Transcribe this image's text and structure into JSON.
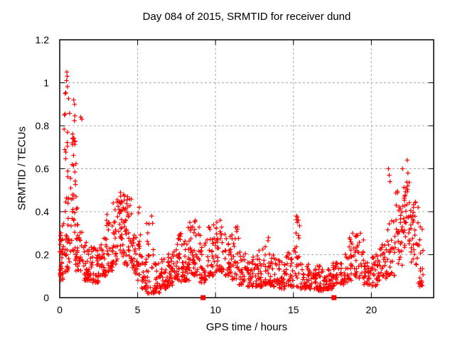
{
  "chart_data": {
    "type": "scatter",
    "title": "Day 084 of 2015, SRMTID for receiver dund",
    "xlabel": "GPS time / hours",
    "ylabel": "SRMTID / TECUs",
    "xlim": [
      0,
      24
    ],
    "ylim": [
      0,
      1.2
    ],
    "xticks": [
      0,
      5,
      10,
      15,
      20
    ],
    "yticks": [
      0,
      0.2,
      0.4,
      0.6,
      0.8,
      1,
      1.2
    ],
    "grid": {
      "show": true,
      "style": "dashed",
      "color": "#a8a8a8",
      "dash": "3 3"
    },
    "background_color": "#ffffff",
    "border_color": "#000000",
    "series": [
      {
        "name": "srmtid-points",
        "marker": "plus",
        "color": "#ff0000",
        "marker_size_px": 7,
        "comment": "Dense scatter of ~1600 red plus markers; band envelope read from the plot. Each bin: [hour_start, hour_end, value_min, value_max, point_count, bias_exponent(>1 = concentrated near min)]",
        "density_bins": [
          [
            0.0,
            0.3,
            0.08,
            0.36,
            38,
            1.3
          ],
          [
            0.3,
            0.6,
            0.12,
            0.4,
            22,
            1.4
          ],
          [
            0.25,
            0.6,
            0.38,
            1.05,
            18,
            0.95
          ],
          [
            0.6,
            1.05,
            0.45,
            0.92,
            18,
            1.0
          ],
          [
            0.75,
            1.0,
            0.7,
            0.76,
            7,
            1.0
          ],
          [
            0.6,
            1.2,
            0.15,
            0.42,
            22,
            1.3
          ],
          [
            1.0,
            1.5,
            0.12,
            0.34,
            32,
            1.7
          ],
          [
            1.5,
            2.0,
            0.08,
            0.26,
            38,
            1.7
          ],
          [
            2.0,
            2.5,
            0.07,
            0.24,
            38,
            1.7
          ],
          [
            2.5,
            3.0,
            0.1,
            0.3,
            34,
            1.7
          ],
          [
            3.0,
            3.4,
            0.12,
            0.4,
            28,
            1.5
          ],
          [
            3.4,
            3.7,
            0.15,
            0.47,
            24,
            1.1
          ],
          [
            3.7,
            4.0,
            0.17,
            0.49,
            26,
            1.0
          ],
          [
            4.0,
            4.3,
            0.15,
            0.49,
            26,
            1.0
          ],
          [
            4.3,
            4.6,
            0.14,
            0.46,
            22,
            1.1
          ],
          [
            4.6,
            5.0,
            0.1,
            0.3,
            26,
            1.5
          ],
          [
            5.0,
            5.2,
            0.08,
            0.42,
            16,
            1.3
          ],
          [
            5.2,
            5.55,
            0.04,
            0.2,
            22,
            1.5
          ],
          [
            5.55,
            6.05,
            0.02,
            0.38,
            30,
            2.0
          ],
          [
            6.05,
            6.45,
            0.02,
            0.16,
            28,
            1.4
          ],
          [
            6.45,
            6.95,
            0.04,
            0.18,
            34,
            1.4
          ],
          [
            6.95,
            7.4,
            0.05,
            0.22,
            34,
            1.5
          ],
          [
            7.4,
            7.8,
            0.07,
            0.3,
            30,
            1.6
          ],
          [
            7.8,
            8.1,
            0.08,
            0.27,
            26,
            1.5
          ],
          [
            8.1,
            8.5,
            0.08,
            0.34,
            32,
            1.5
          ],
          [
            8.5,
            9.0,
            0.1,
            0.36,
            34,
            1.4
          ],
          [
            9.0,
            9.5,
            0.07,
            0.3,
            30,
            1.5
          ],
          [
            9.5,
            10.0,
            0.1,
            0.35,
            34,
            1.4
          ],
          [
            10.0,
            10.5,
            0.12,
            0.36,
            34,
            1.3
          ],
          [
            10.5,
            11.0,
            0.1,
            0.3,
            30,
            1.5
          ],
          [
            11.0,
            11.5,
            0.08,
            0.33,
            28,
            1.7
          ],
          [
            11.5,
            12.0,
            0.06,
            0.25,
            30,
            1.6
          ],
          [
            12.0,
            12.5,
            0.05,
            0.2,
            34,
            1.5
          ],
          [
            12.5,
            13.0,
            0.05,
            0.22,
            34,
            1.5
          ],
          [
            13.0,
            13.5,
            0.06,
            0.28,
            28,
            1.7
          ],
          [
            13.5,
            14.0,
            0.05,
            0.2,
            30,
            1.5
          ],
          [
            14.0,
            14.5,
            0.04,
            0.18,
            30,
            1.5
          ],
          [
            14.5,
            15.0,
            0.05,
            0.22,
            28,
            1.5
          ],
          [
            15.0,
            15.45,
            0.05,
            0.38,
            26,
            1.9
          ],
          [
            15.45,
            16.0,
            0.04,
            0.16,
            30,
            1.4
          ],
          [
            16.0,
            16.5,
            0.04,
            0.15,
            34,
            1.4
          ],
          [
            16.5,
            17.0,
            0.03,
            0.15,
            34,
            1.4
          ],
          [
            17.0,
            17.5,
            0.04,
            0.15,
            30,
            1.4
          ],
          [
            17.5,
            18.0,
            0.05,
            0.18,
            28,
            1.4
          ],
          [
            18.0,
            18.5,
            0.06,
            0.22,
            28,
            1.5
          ],
          [
            18.5,
            19.0,
            0.08,
            0.3,
            26,
            1.5
          ],
          [
            19.0,
            19.5,
            0.09,
            0.3,
            26,
            1.4
          ],
          [
            19.5,
            20.0,
            0.06,
            0.2,
            28,
            1.4
          ],
          [
            20.0,
            20.5,
            0.05,
            0.2,
            28,
            1.4
          ],
          [
            20.5,
            21.0,
            0.08,
            0.25,
            28,
            1.4
          ],
          [
            21.0,
            21.5,
            0.1,
            0.38,
            26,
            1.4
          ],
          [
            21.5,
            22.0,
            0.15,
            0.5,
            28,
            1.2
          ],
          [
            21.9,
            22.15,
            0.3,
            0.6,
            12,
            1.0
          ],
          [
            22.1,
            22.5,
            0.22,
            0.55,
            28,
            1.0
          ],
          [
            22.5,
            22.9,
            0.15,
            0.45,
            28,
            1.2
          ],
          [
            22.9,
            23.35,
            0.05,
            0.35,
            24,
            1.4
          ]
        ],
        "notable_points": [
          [
            0.45,
            1.05
          ],
          [
            0.48,
            1.03
          ],
          [
            0.44,
            1.01
          ],
          [
            0.35,
            0.95
          ],
          [
            0.9,
            0.92
          ],
          [
            0.95,
            0.9
          ],
          [
            0.3,
            0.85
          ],
          [
            1.35,
            0.84
          ],
          [
            1.42,
            0.83
          ],
          [
            0.5,
            0.77
          ],
          [
            1.05,
            0.47
          ],
          [
            3.9,
            0.49
          ],
          [
            4.1,
            0.48
          ],
          [
            4.35,
            0.47
          ],
          [
            5.1,
            0.42
          ],
          [
            5.9,
            0.38
          ],
          [
            8.35,
            0.35
          ],
          [
            8.7,
            0.36
          ],
          [
            10.3,
            0.36
          ],
          [
            11.4,
            0.33
          ],
          [
            13.4,
            0.28
          ],
          [
            15.2,
            0.38
          ],
          [
            15.25,
            0.35
          ],
          [
            18.8,
            0.3
          ],
          [
            19.3,
            0.3
          ],
          [
            21.1,
            0.6
          ],
          [
            21.15,
            0.57
          ],
          [
            21.2,
            0.54
          ],
          [
            21.6,
            0.43
          ],
          [
            22.0,
            0.6
          ],
          [
            22.3,
            0.64
          ],
          [
            22.35,
            0.58
          ],
          [
            23.0,
            0.42
          ]
        ]
      },
      {
        "name": "axis-event-markers",
        "marker": "filled-square",
        "color": "#ff0000",
        "marker_size_px": 7,
        "points": [
          [
            9.2,
            0
          ],
          [
            17.6,
            0
          ]
        ]
      }
    ]
  }
}
